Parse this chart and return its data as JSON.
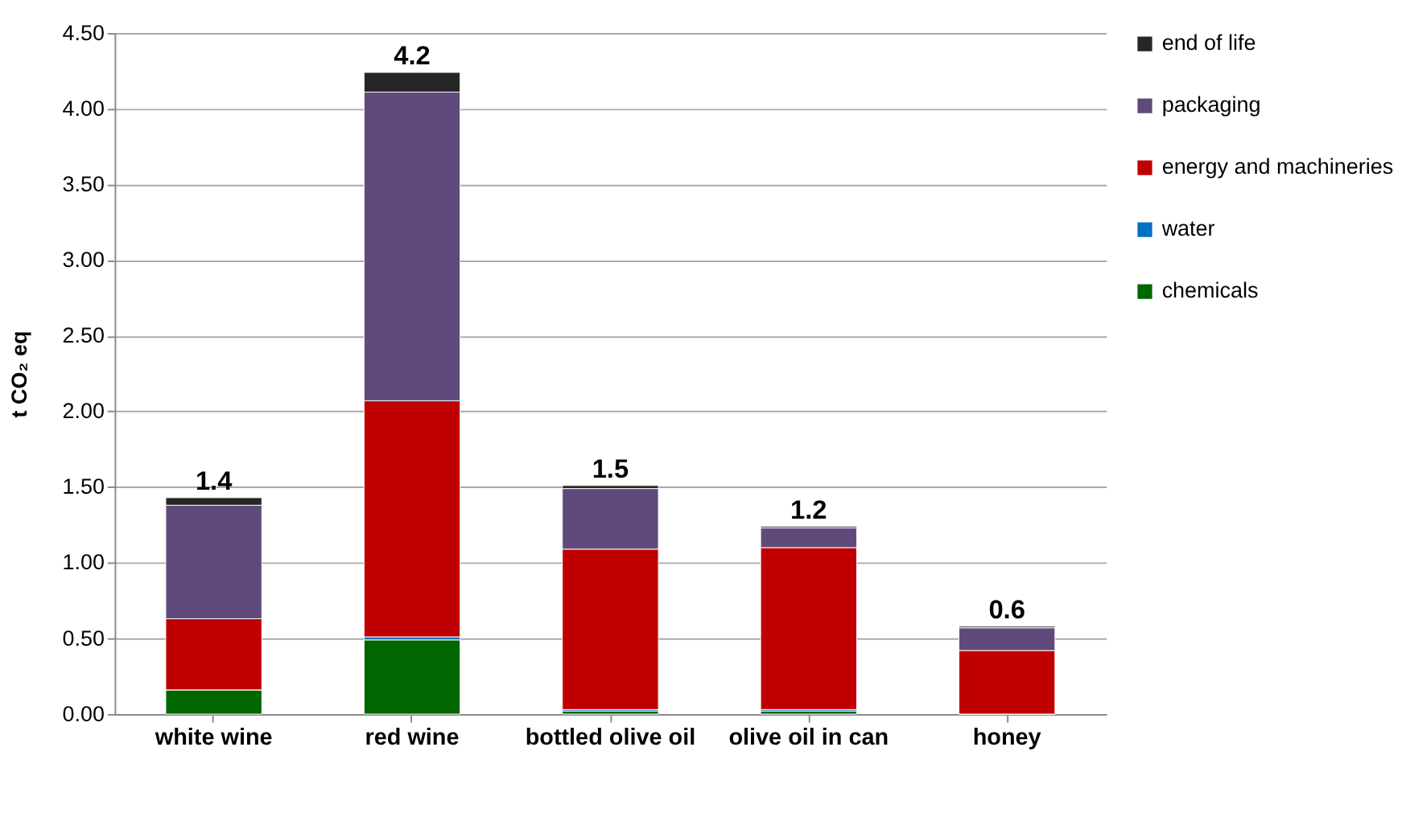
{
  "chart_data": {
    "type": "bar",
    "stacked": true,
    "ylabel": "t CO₂ eq",
    "categories": [
      "white wine",
      "red wine",
      "bottled olive oil",
      "olive oil in can",
      "honey"
    ],
    "series": [
      {
        "name": "chemicals",
        "color": "#006600",
        "values": [
          0.16,
          0.49,
          0.02,
          0.02,
          0
        ]
      },
      {
        "name": "water",
        "color": "#0070c0",
        "values": [
          0,
          0.02,
          0.01,
          0.01,
          0
        ]
      },
      {
        "name": "energy and machineries",
        "color": "#c00000",
        "values": [
          0.47,
          1.56,
          1.06,
          1.07,
          0.42
        ]
      },
      {
        "name": "packaging",
        "color": "#604a7b",
        "values": [
          0.75,
          2.04,
          0.4,
          0.13,
          0.15
        ]
      },
      {
        "name": "end of life",
        "color": "#262626",
        "values": [
          0.05,
          0.13,
          0.02,
          0.01,
          0.01
        ]
      }
    ],
    "totals": [
      "1.4",
      "4.2",
      "1.5",
      "1.2",
      "0.6"
    ],
    "ylim": [
      0,
      4.5
    ],
    "yticks": [
      {
        "value": 0,
        "label": "0.00"
      },
      {
        "value": 0.5,
        "label": "0.50"
      },
      {
        "value": 1,
        "label": "1.00"
      },
      {
        "value": 1.5,
        "label": "1.50"
      },
      {
        "value": 2,
        "label": "2.00"
      },
      {
        "value": 2.5,
        "label": "2.50"
      },
      {
        "value": 3,
        "label": "3.00"
      },
      {
        "value": 3.5,
        "label": "3.50"
      },
      {
        "value": 4,
        "label": "4.00"
      },
      {
        "value": 4.5,
        "label": "4.50"
      }
    ],
    "grid": "y",
    "legend": "right"
  }
}
